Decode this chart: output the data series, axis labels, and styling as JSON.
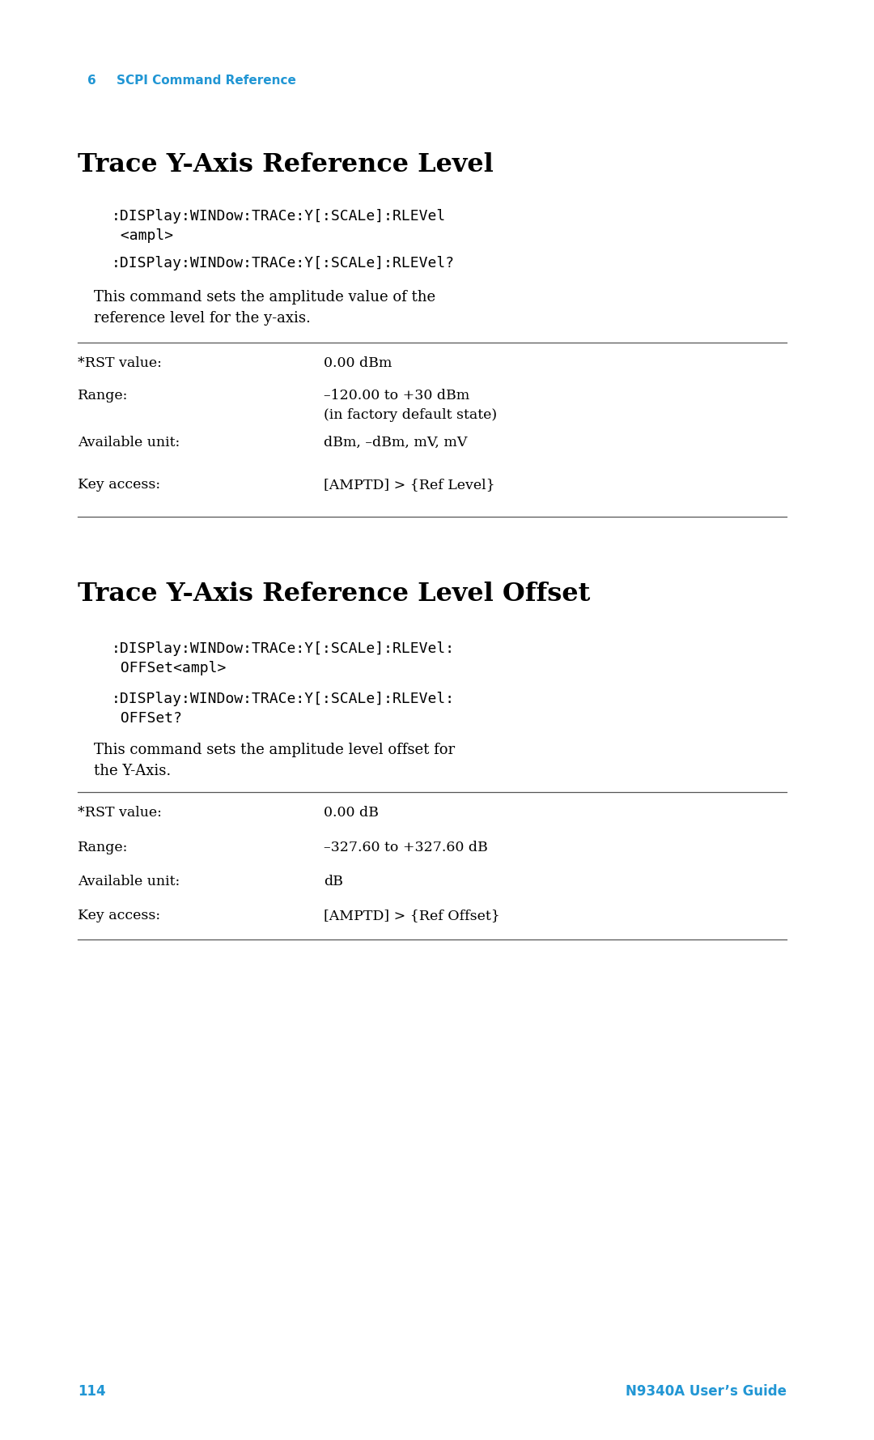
{
  "page_bg": "#ffffff",
  "header_chapter": "6",
  "header_text": "SCPI Command Reference",
  "header_color": "#2196d4",
  "footer_page": "114",
  "footer_right": "N9340A User’s Guide",
  "footer_color": "#2196d4",
  "section1_title": "Trace Y-Axis Reference Level",
  "section1_code1": ":DISPlay:WINDow:TRACe:Y[:SCALe]:RLEVel\n <ampl>",
  "section1_code2": ":DISPlay:WINDow:TRACe:Y[:SCALe]:RLEVel?",
  "section1_desc": "This command sets the amplitude value of the\nreference level for the y-axis.",
  "section1_table": [
    [
      "*RST value:",
      "0.00 dBm"
    ],
    [
      "Range:",
      "–120.00 to +30 dBm\n(in factory default state)"
    ],
    [
      "Available unit:",
      "dBm, –dBm, mV, mV"
    ],
    [
      "Key access:",
      "[AMPTD] > {Ref Level}"
    ]
  ],
  "section2_title": "Trace Y-Axis Reference Level Offset",
  "section2_code1": ":DISPlay:WINDow:TRACe:Y[:SCALe]:RLEVel:\n OFFSet<ampl>",
  "section2_code2": ":DISPlay:WINDow:TRACe:Y[:SCALe]:RLEVel:\n OFFSet?",
  "section2_desc": "This command sets the amplitude level offset for\nthe Y-Axis.",
  "section2_table": [
    [
      "*RST value:",
      "0.00 dB"
    ],
    [
      "Range:",
      "–327.60 to +327.60 dB"
    ],
    [
      "Available unit:",
      "dB"
    ],
    [
      "Key access:",
      "[AMPTD] > {Ref Offset}"
    ]
  ]
}
